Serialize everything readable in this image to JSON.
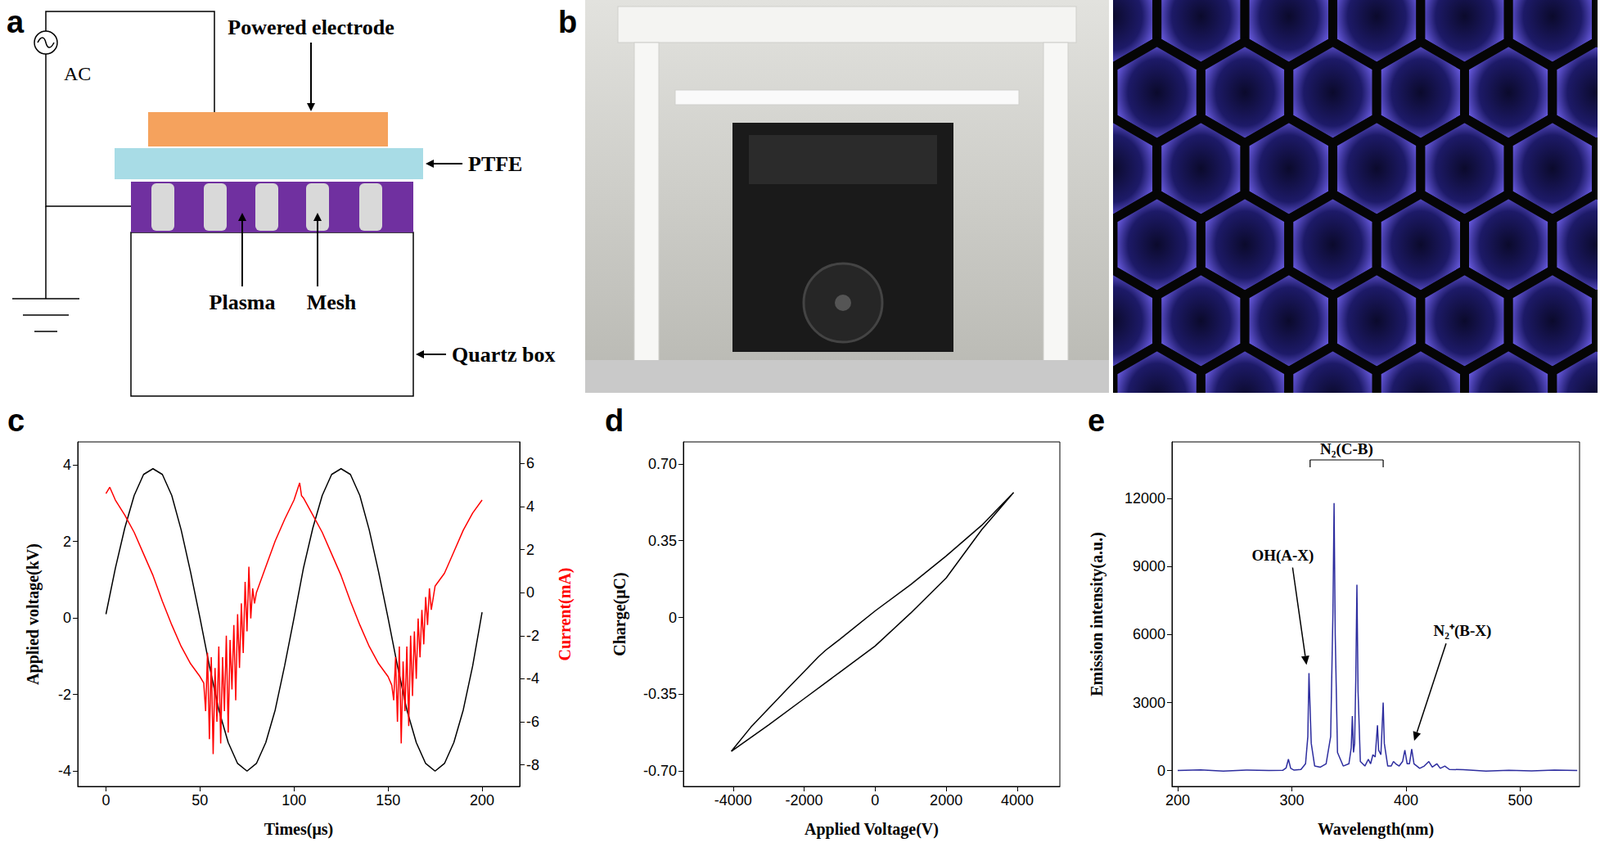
{
  "chart_data": [
    {
      "type": "line",
      "title": "c",
      "xlabel": "Times(μs)",
      "ylabel": "Applied voltage(kV)",
      "y2label": "Current(mA)",
      "xlim": [
        -15,
        220
      ],
      "xticks": [
        0,
        50,
        100,
        150,
        200
      ],
      "ylim": [
        -4.4,
        4.6
      ],
      "yticks": [
        -4,
        -2,
        0,
        2,
        4
      ],
      "y2lim": [
        -9,
        7
      ],
      "y2ticks": [
        -8,
        -6,
        -4,
        -2,
        0,
        2,
        4,
        6
      ],
      "series": [
        {
          "color": "#000000",
          "x": [
            0,
            5,
            10,
            15,
            20,
            25,
            30,
            35,
            40,
            45,
            50,
            55,
            60,
            65,
            70,
            75,
            80,
            85,
            90,
            95,
            100,
            105,
            110,
            115,
            120,
            125,
            130,
            135,
            140,
            145,
            150,
            155,
            160,
            165,
            170,
            175,
            180,
            185,
            190,
            195,
            200
          ],
          "values": [
            0.1,
            1.3,
            2.35,
            3.2,
            3.75,
            3.9,
            3.75,
            3.2,
            2.3,
            1.2,
            0.0,
            -1.25,
            -2.4,
            -3.25,
            -3.8,
            -4.0,
            -3.8,
            -3.25,
            -2.4,
            -1.25,
            0.0,
            1.3,
            2.35,
            3.2,
            3.75,
            3.9,
            3.75,
            3.2,
            2.3,
            1.2,
            0.0,
            -1.25,
            -2.4,
            -3.25,
            -3.8,
            -4.0,
            -3.8,
            -3.25,
            -2.4,
            -1.25,
            0.15
          ]
        },
        {
          "color": "#ff0000",
          "axis": "y2",
          "x": [
            0,
            2,
            5,
            10,
            15,
            20,
            25,
            30,
            35,
            40,
            45,
            50,
            52,
            53,
            54,
            55,
            56,
            57,
            58,
            59,
            60,
            61,
            62,
            63,
            64,
            65,
            66,
            67,
            68,
            69,
            70,
            71,
            72,
            73,
            74,
            75,
            76,
            77,
            78,
            79,
            80,
            85,
            90,
            95,
            100,
            103,
            104,
            105,
            110,
            115,
            120,
            125,
            130,
            135,
            140,
            145,
            150,
            152,
            153,
            154,
            155,
            156,
            157,
            158,
            159,
            160,
            161,
            162,
            163,
            164,
            165,
            166,
            167,
            168,
            169,
            170,
            171,
            172,
            173,
            175,
            180,
            185,
            190,
            195,
            200
          ],
          "values": [
            4.6,
            4.9,
            4.3,
            3.6,
            2.8,
            1.8,
            0.8,
            -0.4,
            -1.5,
            -2.5,
            -3.3,
            -3.9,
            -4.2,
            -5.5,
            -2.8,
            -6.8,
            -3.0,
            -7.5,
            -3.5,
            -6.0,
            -2.5,
            -7.0,
            -3.0,
            -5.5,
            -2.0,
            -6.5,
            -2.2,
            -4.5,
            -1.5,
            -5.0,
            -1.0,
            -3.5,
            -0.5,
            -2.8,
            0.5,
            -1.8,
            1.2,
            -1.2,
            0.2,
            -0.5,
            0.0,
            1.2,
            2.4,
            3.4,
            4.3,
            5.1,
            4.5,
            4.4,
            3.6,
            2.8,
            1.8,
            0.8,
            -0.4,
            -1.5,
            -2.5,
            -3.3,
            -3.9,
            -4.3,
            -5.0,
            -3.0,
            -6.0,
            -2.5,
            -7.0,
            -3.2,
            -5.5,
            -2.5,
            -6.2,
            -2.0,
            -4.8,
            -1.8,
            -4.0,
            -1.2,
            -3.0,
            -0.8,
            -2.4,
            -0.2,
            -1.5,
            0.2,
            -0.8,
            0.3,
            0.9,
            1.9,
            2.9,
            3.7,
            4.3
          ]
        }
      ]
    },
    {
      "type": "line",
      "title": "d",
      "xlabel": "Applied Voltage(V)",
      "ylabel": "Charge(μC)",
      "xlim": [
        -5400,
        5200
      ],
      "xticks": [
        -4000,
        -2000,
        0,
        2000,
        4000
      ],
      "ylim": [
        -0.77,
        0.8
      ],
      "yticks": [
        {
          "value": -0.7,
          "label": "-0.70"
        },
        {
          "value": -0.35,
          "label": "-0.35"
        },
        0,
        {
          "value": 0.35,
          "label": "0.35"
        },
        {
          "value": 0.7,
          "label": "0.70"
        }
      ],
      "series": [
        {
          "color": "#000000",
          "x": [
            3900,
            3000,
            2000,
            1000,
            0,
            -1000,
            -2000,
            -3000,
            -4050,
            -3500,
            -2500,
            -1600,
            -1400,
            -1000,
            0,
            1000,
            2000,
            3000,
            3900
          ],
          "values": [
            0.57,
            0.4,
            0.18,
            0.02,
            -0.13,
            -0.25,
            -0.37,
            -0.49,
            -0.61,
            -0.5,
            -0.33,
            -0.18,
            -0.15,
            -0.1,
            0.03,
            0.15,
            0.28,
            0.42,
            0.57
          ]
        }
      ]
    },
    {
      "type": "line",
      "title": "e",
      "xlabel": "Wavelength(nm)",
      "ylabel": "Emission intensity(a.u.)",
      "xlim": [
        195,
        552
      ],
      "xticks": [
        200,
        300,
        400,
        500
      ],
      "ylim": [
        -700,
        14500
      ],
      "yticks": [
        0,
        3000,
        6000,
        9000,
        12000
      ],
      "series": [
        {
          "color": "#2d2d9f",
          "x": [
            200,
            220,
            240,
            260,
            280,
            292,
            295,
            297,
            299,
            302,
            308,
            312,
            314,
            315,
            317,
            320,
            325,
            330,
            334,
            336,
            337,
            338,
            340,
            345,
            350,
            352,
            353,
            354,
            355,
            356,
            357,
            358,
            360,
            364,
            367,
            369,
            371,
            373,
            375,
            376,
            378,
            380,
            381,
            384,
            387,
            389,
            391,
            394,
            397,
            399,
            401,
            403,
            405,
            407,
            412,
            416,
            420,
            423,
            427,
            430,
            434,
            438,
            450,
            470,
            490,
            510,
            530,
            550
          ],
          "values": [
            0,
            30,
            -20,
            20,
            0,
            10,
            120,
            500,
            100,
            20,
            50,
            300,
            1500,
            4300,
            1200,
            200,
            150,
            300,
            1500,
            7000,
            11800,
            6000,
            800,
            200,
            300,
            1000,
            2400,
            800,
            1200,
            4000,
            8200,
            3500,
            400,
            200,
            500,
            300,
            700,
            600,
            2000,
            900,
            700,
            3000,
            1200,
            200,
            200,
            400,
            300,
            200,
            400,
            900,
            300,
            300,
            950,
            300,
            100,
            200,
            400,
            150,
            300,
            100,
            200,
            50,
            40,
            -20,
            10,
            -10,
            20,
            0
          ]
        }
      ],
      "annotations": [
        {
          "text": "OH(A-X)",
          "x": 315,
          "y": 4300
        },
        {
          "text": "N₂(C-B)",
          "x": [
            316,
            380
          ]
        },
        {
          "text": "N₂⁺(B-X)",
          "x": 405,
          "y": 950
        }
      ]
    }
  ],
  "diagram": {
    "label": "a",
    "source": "AC",
    "labels": {
      "powered_electrode": "Powered electrode",
      "ptfe": "PTFE",
      "plasma": "Plasma",
      "mesh": "Mesh",
      "quartz_box": "Quartz box"
    }
  },
  "photo": {
    "label": "b"
  }
}
